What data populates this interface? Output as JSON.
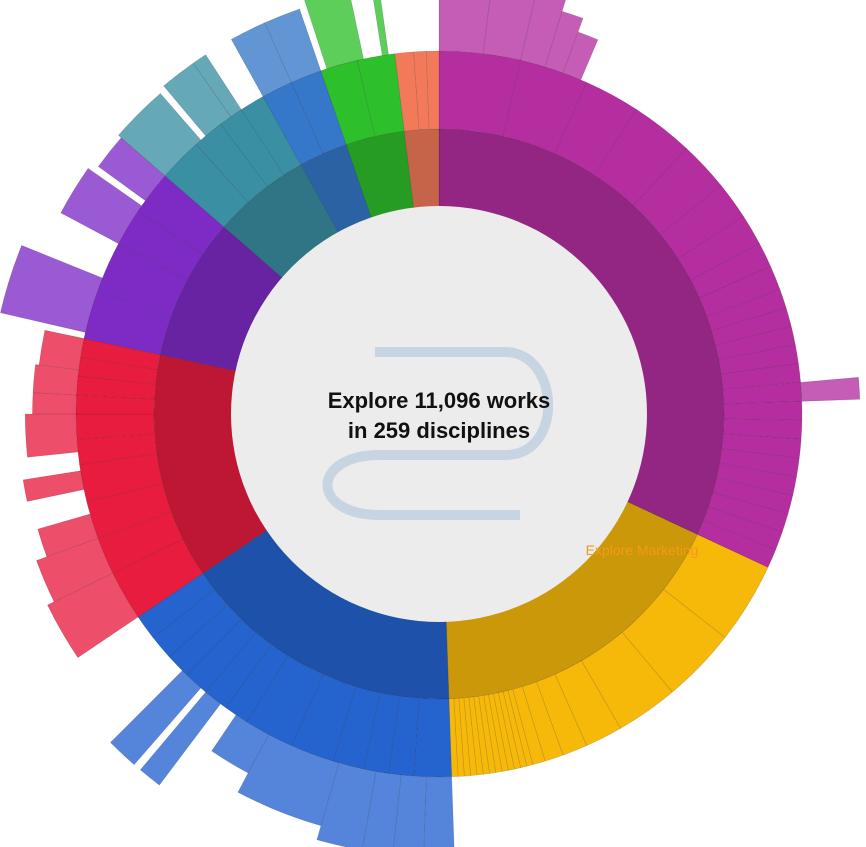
{
  "center": {
    "line1": "Explore 11,096 works",
    "line2": "in 259 disciplines"
  },
  "hover_label": "Explore Marketing",
  "chart_data": {
    "type": "sunburst",
    "grid": false,
    "legend": "none",
    "segments": [
      {
        "id": "magenta",
        "color": "#b52ea0",
        "start": 0,
        "end": 115,
        "inner_arcs": 1,
        "outer_blocks": [
          [
            0,
            13
          ],
          [
            13,
            24
          ],
          [
            24,
            33
          ],
          [
            33,
            43
          ],
          [
            43,
            51
          ],
          [
            51,
            57
          ],
          [
            57,
            62
          ],
          [
            62,
            66
          ],
          [
            66,
            70
          ],
          [
            70,
            73
          ],
          [
            73,
            76
          ],
          [
            76,
            79
          ],
          [
            79,
            82
          ],
          [
            82,
            85
          ],
          [
            85,
            88
          ],
          [
            88,
            91
          ],
          [
            91,
            94
          ],
          [
            94,
            97
          ],
          [
            97,
            100
          ],
          [
            100,
            103
          ],
          [
            103,
            106
          ],
          [
            106,
            109
          ],
          [
            109,
            112
          ],
          [
            112,
            115
          ]
        ],
        "outer_extend": [
          [
            0,
            7,
            1.25
          ],
          [
            7,
            13,
            1.22
          ],
          [
            13,
            17,
            1.22
          ],
          [
            17,
            20,
            1.16
          ],
          [
            20,
            23,
            1.12
          ],
          [
            85,
            88,
            1.16
          ]
        ]
      },
      {
        "id": "gold",
        "color": "#f6b90a",
        "start": 115,
        "end": 178,
        "inner_arcs": 1,
        "outer_blocks": [
          [
            115,
            128
          ],
          [
            128,
            140
          ],
          [
            140,
            150
          ],
          [
            150,
            156
          ],
          [
            156,
            160
          ],
          [
            160,
            163
          ],
          [
            163,
            165
          ],
          [
            165,
            166
          ],
          [
            166,
            167
          ],
          [
            167,
            168
          ],
          [
            168,
            169
          ],
          [
            169,
            170
          ],
          [
            170,
            171
          ],
          [
            171,
            172
          ],
          [
            172,
            173
          ],
          [
            173,
            174
          ],
          [
            174,
            175
          ],
          [
            175,
            176
          ],
          [
            176,
            177
          ],
          [
            177,
            178
          ]
        ],
        "outer_extend": []
      },
      {
        "id": "blue",
        "color": "#2563cf",
        "start": 178,
        "end": 236,
        "inner_arcs": 1,
        "outer_blocks": [
          [
            178,
            184
          ],
          [
            184,
            188
          ],
          [
            188,
            192
          ],
          [
            192,
            197
          ],
          [
            197,
            204
          ],
          [
            204,
            212
          ],
          [
            212,
            216
          ],
          [
            216,
            220
          ],
          [
            220,
            224
          ],
          [
            224,
            228
          ],
          [
            228,
            232
          ],
          [
            232,
            236
          ]
        ],
        "outer_extend": [
          [
            178,
            182,
            1.25
          ],
          [
            182,
            186,
            1.25
          ],
          [
            186,
            190,
            1.25
          ],
          [
            190,
            196,
            1.22
          ],
          [
            196,
            208,
            1.18
          ],
          [
            208,
            214,
            1.12
          ],
          [
            217,
            220,
            1.28
          ],
          [
            221,
            225,
            1.28
          ]
        ]
      },
      {
        "id": "red",
        "color": "#e81c3f",
        "start": 236,
        "end": 282,
        "inner_arcs": 1,
        "outer_blocks": [
          [
            236,
            244
          ],
          [
            244,
            250
          ],
          [
            250,
            256
          ],
          [
            256,
            262
          ],
          [
            262,
            266
          ],
          [
            266,
            270
          ],
          [
            270,
            273
          ],
          [
            273,
            276
          ],
          [
            276,
            279
          ],
          [
            279,
            282
          ]
        ],
        "outer_extend": [
          [
            236,
            244,
            1.2
          ],
          [
            244,
            250,
            1.18
          ],
          [
            250,
            254,
            1.15
          ],
          [
            258,
            261,
            1.16
          ],
          [
            264,
            270,
            1.14
          ],
          [
            270,
            273,
            1.12
          ],
          [
            273,
            277,
            1.12
          ],
          [
            277,
            282,
            1.11
          ]
        ]
      },
      {
        "id": "purple",
        "color": "#7e2bc6",
        "start": 282,
        "end": 311,
        "inner_arcs": 1,
        "outer_blocks": [
          [
            282,
            290
          ],
          [
            290,
            298
          ],
          [
            298,
            304
          ],
          [
            304,
            311
          ]
        ],
        "outer_extend": [
          [
            283,
            292,
            1.24
          ],
          [
            298,
            305,
            1.18
          ],
          [
            306,
            311,
            1.16
          ]
        ]
      },
      {
        "id": "teal",
        "color": "#3a8fa3",
        "start": 311,
        "end": 331,
        "inner_arcs": 1,
        "outer_blocks": [
          [
            311,
            318
          ],
          [
            318,
            323
          ],
          [
            323,
            327
          ],
          [
            327,
            331
          ]
        ],
        "outer_extend": [
          [
            311,
            319,
            1.17
          ],
          [
            320,
            325,
            1.18
          ],
          [
            325,
            327,
            1.18
          ]
        ]
      },
      {
        "id": "steel",
        "color": "#3577c8",
        "start": 331,
        "end": 341,
        "inner_arcs": 1,
        "outer_blocks": [
          [
            331,
            336
          ],
          [
            336,
            341
          ]
        ],
        "outer_extend": [
          [
            331,
            336,
            1.18
          ],
          [
            336,
            341,
            1.18
          ]
        ]
      },
      {
        "id": "green",
        "color": "#2ec02a",
        "start": 341,
        "end": 353,
        "inner_arcs": 1,
        "outer_blocks": [
          [
            341,
            347
          ],
          [
            347,
            353
          ]
        ],
        "outer_extend": [
          [
            342,
            348,
            1.22
          ],
          [
            351,
            352,
            1.22
          ]
        ]
      },
      {
        "id": "salmon",
        "color": "#f27a5a",
        "start": 353,
        "end": 360,
        "inner_arcs": 1,
        "outer_blocks": [
          [
            353,
            356
          ],
          [
            356,
            358
          ],
          [
            358,
            360
          ]
        ],
        "outer_extend": []
      }
    ]
  }
}
